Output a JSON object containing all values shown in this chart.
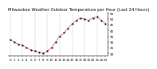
{
  "title": "Milwaukee Weather Outdoor Temperature per Hour (Last 24 Hours)",
  "hours": [
    0,
    1,
    2,
    3,
    4,
    5,
    6,
    7,
    8,
    9,
    10,
    11,
    12,
    13,
    14,
    15,
    16,
    17,
    18,
    19,
    20,
    21,
    22,
    23
  ],
  "temps": [
    32,
    30,
    28,
    27,
    25,
    23,
    22,
    21,
    20,
    22,
    25,
    30,
    35,
    38,
    42,
    46,
    49,
    51,
    50,
    49,
    51,
    52,
    49,
    46
  ],
  "ylim": [
    18,
    56
  ],
  "ytick_vals": [
    20,
    25,
    30,
    35,
    40,
    45,
    50,
    55
  ],
  "ytick_labels": [
    "20",
    "25",
    "30",
    "35",
    "40",
    "45",
    "50",
    "55"
  ],
  "xtick_positions": [
    0,
    1,
    2,
    3,
    4,
    5,
    6,
    7,
    8,
    9,
    10,
    11,
    12,
    13,
    14,
    15,
    16,
    17,
    18,
    19,
    20,
    21,
    22,
    23
  ],
  "xtick_labels": [
    "0",
    "1",
    "2",
    "3",
    "4",
    "5",
    "6",
    "7",
    "8",
    "9",
    "10",
    "11",
    "12",
    "13",
    "14",
    "15",
    "16",
    "17",
    "18",
    "19",
    "20",
    "21",
    "22",
    "23"
  ],
  "vgrid_positions": [
    0,
    3,
    6,
    9,
    12,
    15,
    18,
    21
  ],
  "line_color": "#cc0000",
  "marker_color": "#000000",
  "bg_color": "#ffffff",
  "grid_color": "#888888",
  "title_color": "#000000",
  "title_fontsize": 3.8,
  "tick_fontsize": 3.0,
  "line_width": 0.6,
  "marker_size": 1.2
}
